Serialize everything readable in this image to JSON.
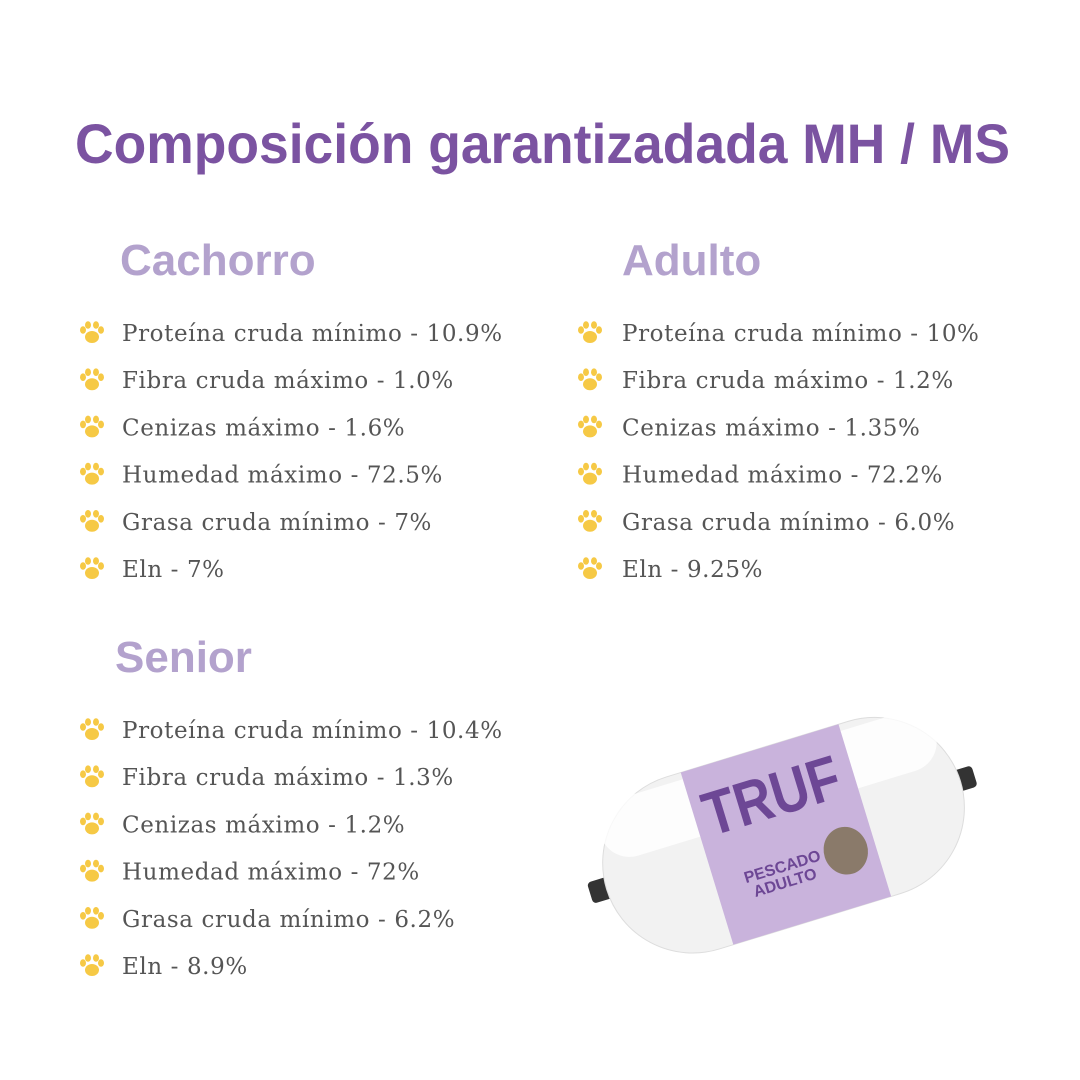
{
  "title": "Composición garantizadada MH / MS",
  "sections": [
    {
      "heading": "Cachorro",
      "items": [
        "Proteína cruda mínimo - 10.9%",
        "Fibra cruda máximo - 1.0%",
        "Cenizas máximo - 1.6%",
        "Humedad máximo - 72.5%",
        "Grasa cruda mínimo - 7%",
        "Eln - 7%"
      ]
    },
    {
      "heading": "Adulto",
      "items": [
        "Proteína cruda mínimo - 10%",
        "Fibra cruda máximo - 1.2%",
        "Cenizas máximo - 1.35%",
        "Humedad máximo - 72.2%",
        "Grasa cruda mínimo - 6.0%",
        "Eln - 9.25%"
      ]
    },
    {
      "heading": "Senior",
      "items": [
        "Proteína cruda mínimo - 10.4%",
        "Fibra cruda máximo - 1.3%",
        "Cenizas máximo - 1.2%",
        "Humedad máximo - 72%",
        "Grasa cruda mínimo - 6.2%",
        "Eln - 8.9%"
      ]
    }
  ],
  "product": {
    "brand": "TRUF",
    "line1": "PESCADO",
    "line2": "ADULTO"
  }
}
